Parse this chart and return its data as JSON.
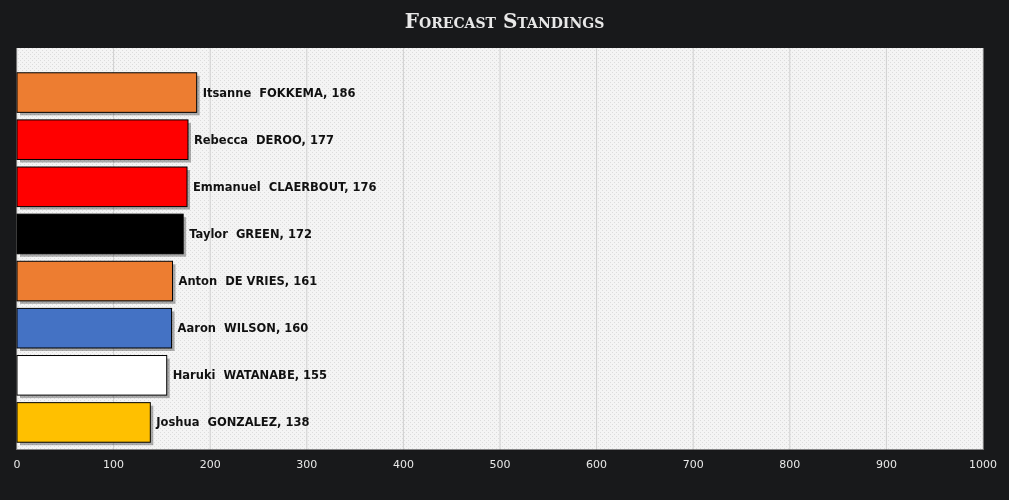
{
  "chart_data": {
    "type": "bar",
    "orientation": "horizontal",
    "title": "Forecast Standings",
    "categories": [
      null,
      null,
      null,
      null,
      null,
      null,
      null,
      null
    ],
    "values": [
      186,
      177,
      176,
      172,
      161,
      160,
      155,
      138
    ],
    "value_labels": [
      "Itsanne  FOKKEMA, 186",
      "Rebecca  DEROO, 177",
      "Emmanuel  CLAERBOUT, 176",
      "Taylor  GREEN, 172",
      "Anton  DE VRIES, 161",
      "Aaron  WILSON, 160",
      "Haruki  WATANABE, 155",
      "Joshua  GONZALEZ, 138"
    ],
    "colors": [
      "#ed7d31",
      "#ff0000",
      "#ff0000",
      "#000000",
      "#ed7d31",
      "#4472c4",
      "#ffffff",
      "#ffc000"
    ],
    "xlim": [
      0,
      1000
    ],
    "xticks": [
      0,
      100,
      200,
      300,
      400,
      500,
      600,
      700,
      800,
      900,
      1000
    ],
    "grid": "x"
  }
}
